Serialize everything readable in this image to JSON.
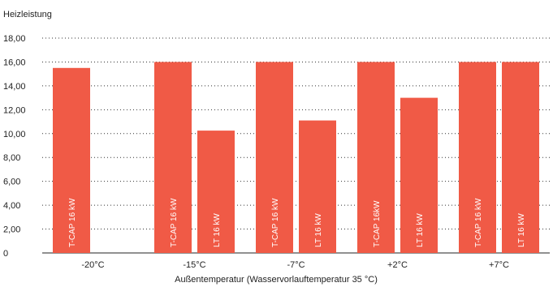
{
  "chart_data": {
    "type": "bar",
    "ylabel": "Heizleistung",
    "xlabel": "Außentemperatur (Wasservorlauftemperatur 35 °C)",
    "ylim": [
      0,
      18
    ],
    "yticks": [
      "0",
      "2,00",
      "4,00",
      "6,00",
      "8,00",
      "10,00",
      "12,00",
      "14,00",
      "16,00",
      "18,00"
    ],
    "grid": true,
    "bar_color": "#f05a46",
    "categories": [
      "-20°C",
      "-15°C",
      "-7°C",
      "+2°C",
      "+7°C"
    ],
    "bars": [
      {
        "category": "-20°C",
        "label": "T-CAP 16 kW",
        "value": 15.5
      },
      {
        "category": "-15°C",
        "label": "T-CAP 16 kW",
        "value": 16.0
      },
      {
        "category": "-15°C",
        "label": "LT 16 kW",
        "value": 10.25
      },
      {
        "category": "-7°C",
        "label": "T-CAP 16 kW",
        "value": 16.0
      },
      {
        "category": "-7°C",
        "label": "LT 16 kW",
        "value": 11.1
      },
      {
        "category": "+2°C",
        "label": "T-CAP 16kW",
        "value": 16.0
      },
      {
        "category": "+2°C",
        "label": "LT 16 kW",
        "value": 13.0
      },
      {
        "category": "+7°C",
        "label": "T-CAP 16 kW",
        "value": 16.0
      },
      {
        "category": "+7°C",
        "label": "LT 16 kW",
        "value": 16.0
      }
    ]
  }
}
